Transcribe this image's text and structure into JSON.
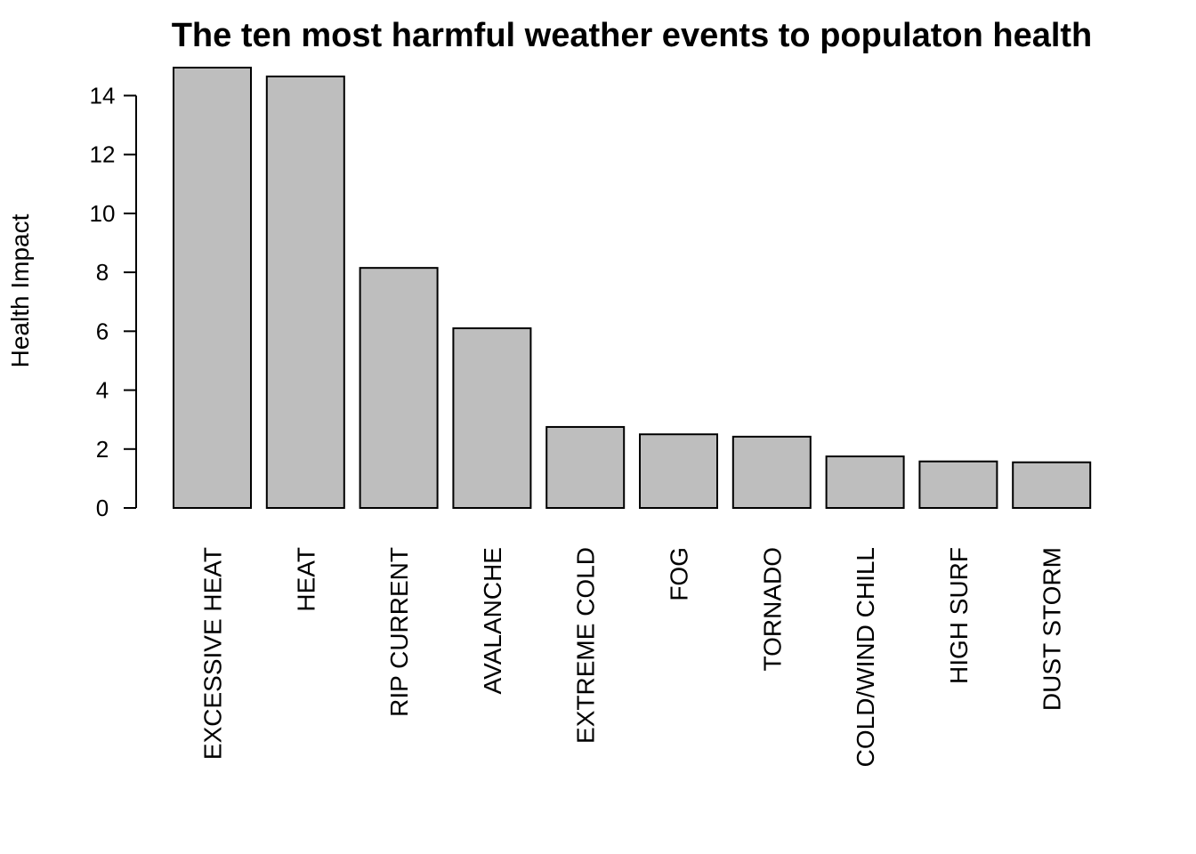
{
  "chart_data": {
    "type": "bar",
    "title": "The ten most harmful weather events to populaton health",
    "xlabel": "",
    "ylabel": "Health Impact",
    "categories": [
      "EXCESSIVE HEAT",
      "HEAT",
      "RIP CURRENT",
      "AVALANCHE",
      "EXTREME COLD",
      "FOG",
      "TORNADO",
      "COLD/WIND CHILL",
      "HIGH SURF",
      "DUST STORM"
    ],
    "values": [
      14.95,
      14.65,
      8.15,
      6.1,
      2.75,
      2.5,
      2.42,
      1.75,
      1.58,
      1.55
    ],
    "yticks": [
      0,
      2,
      4,
      6,
      8,
      10,
      12,
      14
    ],
    "ytick_labels": [
      "0",
      "2",
      "4",
      "6",
      "8",
      "10",
      "12",
      "14"
    ],
    "ylim": [
      0,
      14.95
    ],
    "bar_color": "#bebebe",
    "grid": false,
    "legend": "none"
  }
}
